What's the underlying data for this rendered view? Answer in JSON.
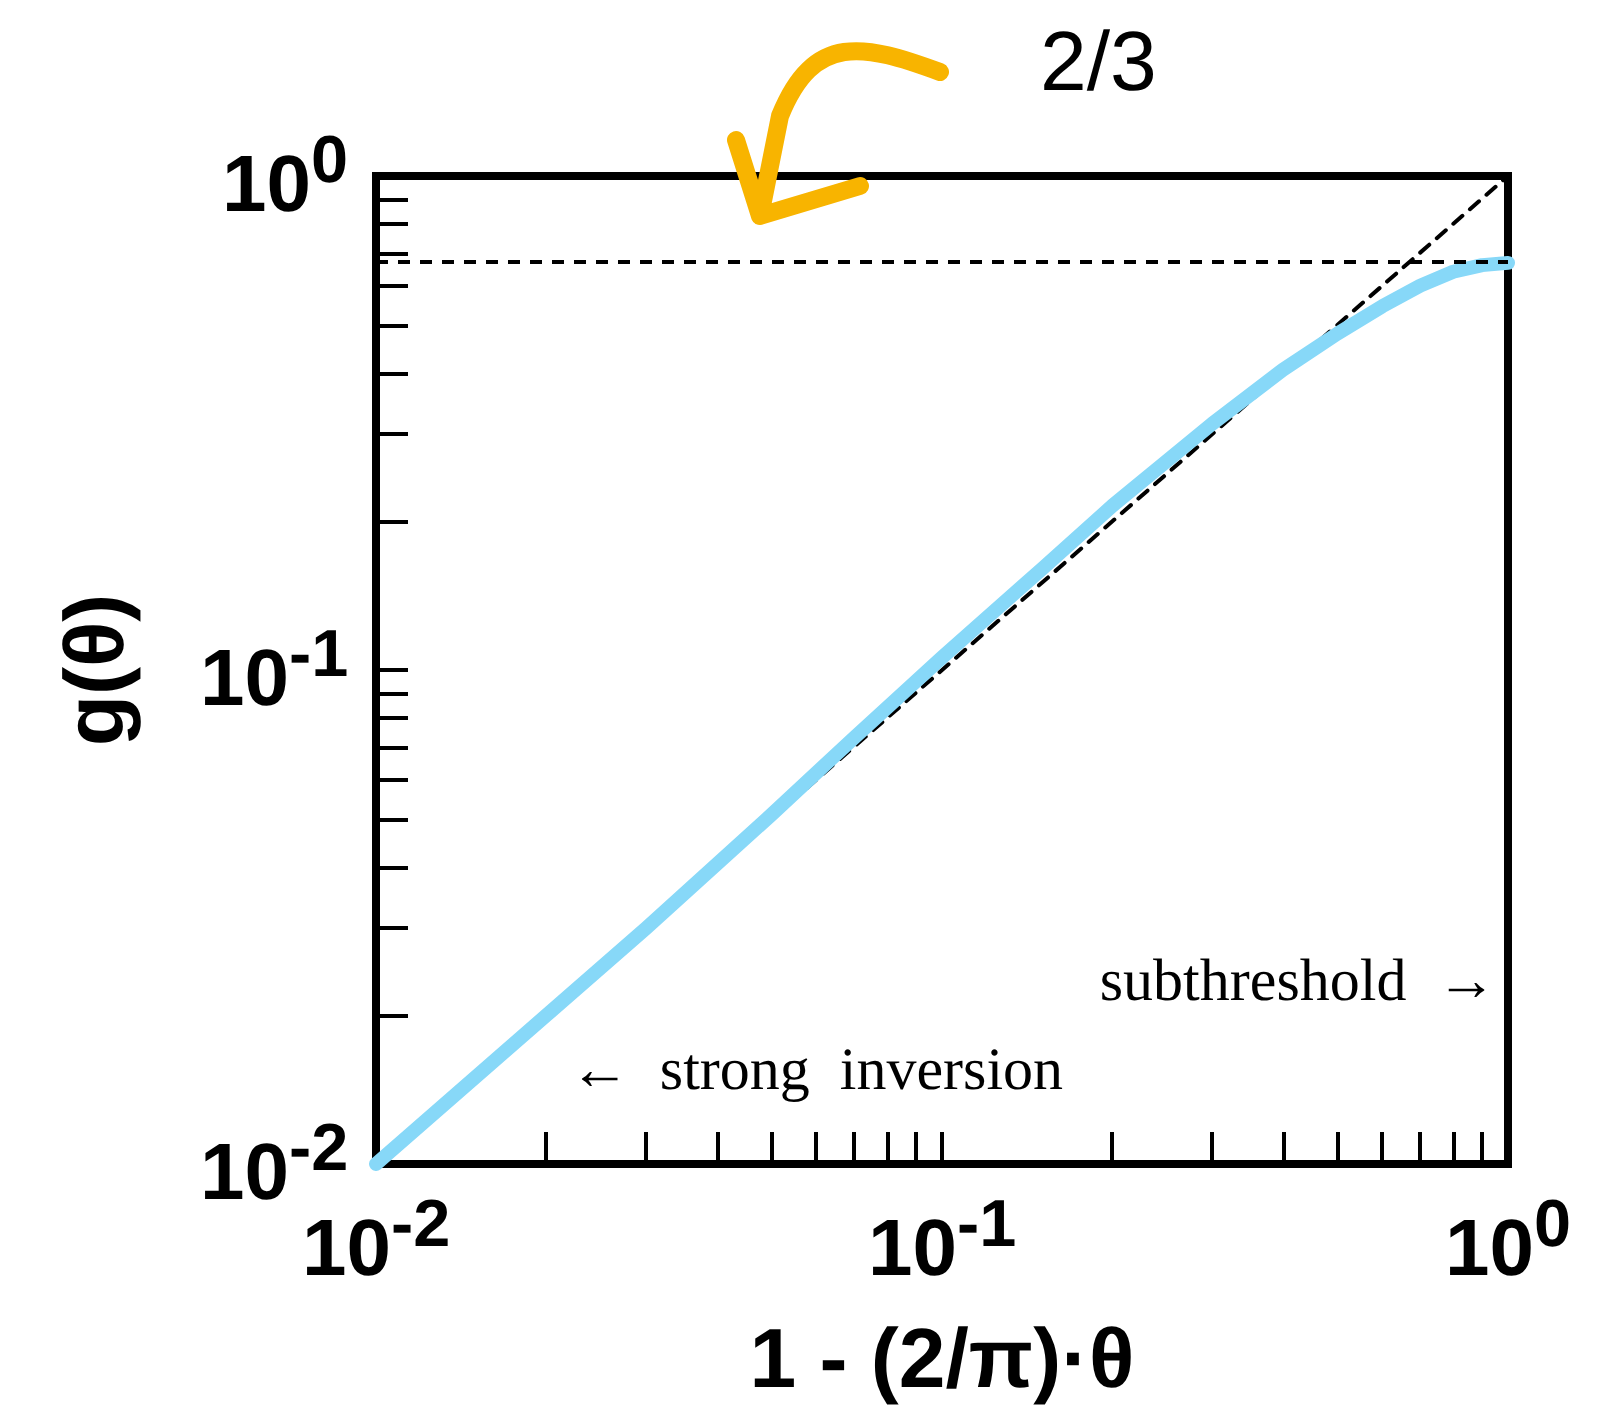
{
  "chart_data": {
    "type": "line",
    "xlabel": "1 - (2/π)·θ",
    "ylabel": "g(θ)",
    "log": "xy",
    "xlim": [
      0.01,
      1
    ],
    "ylim": [
      0.01,
      1
    ],
    "xticks": [
      {
        "value": 0.01,
        "label": "10$^{-2}$"
      },
      {
        "value": 0.02,
        "label": null
      },
      {
        "value": 0.03,
        "label": null
      },
      {
        "value": 0.04,
        "label": null
      },
      {
        "value": 0.05,
        "label": null
      },
      {
        "value": 0.06,
        "label": null
      },
      {
        "value": 0.07,
        "label": null
      },
      {
        "value": 0.08,
        "label": null
      },
      {
        "value": 0.09,
        "label": null
      },
      {
        "value": 0.1,
        "label": "10$^{-1}$"
      },
      {
        "value": 0.2,
        "label": null
      },
      {
        "value": 0.3,
        "label": null
      },
      {
        "value": 0.4,
        "label": null
      },
      {
        "value": 0.5,
        "label": null
      },
      {
        "value": 0.6,
        "label": null
      },
      {
        "value": 0.7,
        "label": null
      },
      {
        "value": 0.8,
        "label": null
      },
      {
        "value": 0.9,
        "label": null
      },
      {
        "value": 1,
        "label": "10$^{0}$"
      }
    ],
    "yticks": [
      {
        "value": 0.01,
        "label": "10$^{-2}$"
      },
      {
        "value": 0.02,
        "label": null
      },
      {
        "value": 0.03,
        "label": null
      },
      {
        "value": 0.04,
        "label": null
      },
      {
        "value": 0.05,
        "label": null
      },
      {
        "value": 0.06,
        "label": null
      },
      {
        "value": 0.07,
        "label": null
      },
      {
        "value": 0.08,
        "label": null
      },
      {
        "value": 0.09,
        "label": null
      },
      {
        "value": 0.1,
        "label": "10$^{-1}$"
      },
      {
        "value": 0.2,
        "label": null
      },
      {
        "value": 0.3,
        "label": null
      },
      {
        "value": 0.4,
        "label": null
      },
      {
        "value": 0.5,
        "label": null
      },
      {
        "value": 0.6,
        "label": null
      },
      {
        "value": 0.7,
        "label": null
      },
      {
        "value": 0.8,
        "label": null
      },
      {
        "value": 0.9,
        "label": null
      },
      {
        "value": 1,
        "label": "10$^{0}$"
      }
    ],
    "series": [
      {
        "color": "#87d8f8",
        "line_style": "solid",
        "x": [
          0.01,
          0.02,
          0.03,
          0.05,
          0.07,
          0.1,
          0.15,
          0.2,
          0.3,
          0.4,
          0.5,
          0.6,
          0.7,
          0.8,
          0.9,
          1
        ],
        "values": [
          0.01,
          0.02,
          0.03,
          0.051,
          0.073,
          0.106,
          0.16,
          0.215,
          0.315,
          0.405,
          0.48,
          0.545,
          0.6,
          0.64,
          0.66,
          0.667
        ]
      },
      {
        "color": "#000000",
        "line_style": "dashed",
        "x": [
          0.01,
          1
        ],
        "values": [
          0.01,
          1
        ]
      }
    ],
    "ref_lines": [
      {
        "axis": "y",
        "value": 0.6667,
        "color": "#000000",
        "line_style": "dashed"
      }
    ],
    "annotations": [
      {
        "text": "2/3",
        "y": 0.6667
      },
      "subthreshold  →",
      "←  strong  inversion"
    ]
  }
}
